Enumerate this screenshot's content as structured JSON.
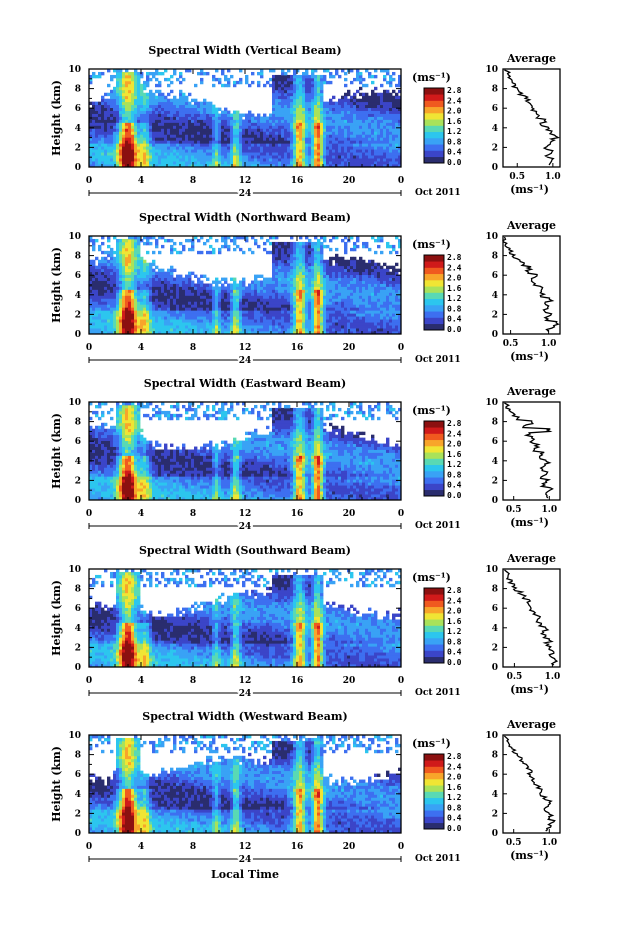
{
  "figure": {
    "date_label": "Oct 2011",
    "day_label": "24",
    "xlabel": "Local Time",
    "unit_label": "(ms⁻¹)",
    "colorbar_ticks": [
      "0.0",
      "0.4",
      "0.8",
      "1.2",
      "1.6",
      "2.0",
      "2.4",
      "2.8"
    ],
    "colorbar_colors": [
      "#2a2d6e",
      "#3b45c8",
      "#3d6ff0",
      "#39a2f5",
      "#2cc6ee",
      "#59d9b4",
      "#a9e25a",
      "#f0e534",
      "#f8a52a",
      "#f05a1f",
      "#d01a1a",
      "#8c1010"
    ]
  },
  "chart_data": [
    {
      "type": "heatmap",
      "title": "Spectral Width (Vertical Beam)",
      "ylabel": "Height (km)",
      "x_ticks": [
        "0",
        "4",
        "8",
        "12",
        "16",
        "20",
        "0"
      ],
      "y_ticks": [
        "0",
        "2",
        "4",
        "6",
        "8",
        "10"
      ],
      "xlim": [
        0,
        24
      ],
      "ylim": [
        0,
        10
      ],
      "average": {
        "title": "Average",
        "xlabel": "(ms⁻¹)",
        "x_ticks": [
          "0.5",
          "1.0"
        ],
        "xlim": [
          0.3,
          1.1
        ],
        "height": [
          0.2,
          0.6,
          1.0,
          1.4,
          1.8,
          2.2,
          2.6,
          3.0,
          3.4,
          3.8,
          4.2,
          4.6,
          5.0,
          5.4,
          5.8,
          6.2,
          6.6,
          7.0,
          7.4,
          7.8,
          8.2,
          8.6,
          9.0,
          9.4
        ],
        "value": [
          0.95,
          1.0,
          0.92,
          0.98,
          0.9,
          0.95,
          1.0,
          1.05,
          0.98,
          0.92,
          0.85,
          0.88,
          0.8,
          0.75,
          0.72,
          0.7,
          0.65,
          0.62,
          0.55,
          0.5,
          0.45,
          0.42,
          0.4,
          0.38
        ]
      }
    },
    {
      "type": "heatmap",
      "title": "Spectral Width (Northward Beam)",
      "ylabel": "Height (km)",
      "x_ticks": [
        "0",
        "4",
        "8",
        "12",
        "16",
        "20",
        "0"
      ],
      "y_ticks": [
        "0",
        "2",
        "4",
        "6",
        "8",
        "10"
      ],
      "xlim": [
        0,
        24
      ],
      "ylim": [
        0,
        10
      ],
      "average": {
        "title": "Average",
        "xlabel": "(ms⁻¹)",
        "x_ticks": [
          "0.5",
          "1.0"
        ],
        "xlim": [
          0.4,
          1.15
        ],
        "height": [
          0.2,
          0.6,
          1.0,
          1.4,
          1.8,
          2.2,
          2.6,
          3.0,
          3.4,
          3.8,
          4.2,
          4.6,
          5.0,
          5.4,
          5.8,
          6.2,
          6.6,
          7.0,
          7.4,
          7.8,
          8.2,
          8.6,
          9.0,
          9.4
        ],
        "value": [
          1.0,
          1.05,
          1.1,
          0.98,
          1.02,
          0.95,
          1.0,
          0.97,
          1.03,
          0.92,
          0.88,
          0.9,
          0.8,
          0.78,
          0.82,
          0.72,
          0.75,
          0.68,
          0.62,
          0.55,
          0.5,
          0.48,
          0.45,
          0.42
        ]
      }
    },
    {
      "type": "heatmap",
      "title": "Spectral Width (Eastward Beam)",
      "ylabel": "Height (km)",
      "x_ticks": [
        "0",
        "4",
        "8",
        "12",
        "16",
        "20",
        "0"
      ],
      "y_ticks": [
        "0",
        "2",
        "4",
        "6",
        "8",
        "10"
      ],
      "xlim": [
        0,
        24
      ],
      "ylim": [
        0,
        10
      ],
      "average": {
        "title": "Average",
        "xlabel": "(ms⁻¹)",
        "x_ticks": [
          "0.5",
          "1.0"
        ],
        "xlim": [
          0.35,
          1.15
        ],
        "height": [
          0.2,
          0.6,
          1.0,
          1.4,
          1.8,
          2.2,
          2.6,
          3.0,
          3.4,
          3.8,
          4.2,
          4.6,
          5.0,
          5.4,
          5.8,
          6.2,
          6.6,
          7.0,
          7.4,
          7.8,
          8.2,
          8.6,
          9.0,
          9.4
        ],
        "value": [
          0.98,
          0.95,
          1.02,
          0.92,
          0.97,
          0.9,
          0.95,
          0.88,
          0.92,
          0.98,
          0.85,
          0.9,
          0.8,
          0.82,
          0.75,
          0.78,
          0.7,
          1.0,
          0.65,
          0.75,
          0.55,
          0.5,
          0.45,
          0.42
        ]
      }
    },
    {
      "type": "heatmap",
      "title": "Spectral Width (Southward Beam)",
      "ylabel": "Height (km)",
      "x_ticks": [
        "0",
        "4",
        "8",
        "12",
        "16",
        "20",
        "0"
      ],
      "y_ticks": [
        "0",
        "2",
        "4",
        "6",
        "8",
        "10"
      ],
      "xlim": [
        0,
        24
      ],
      "ylim": [
        0,
        10
      ],
      "average": {
        "title": "Average",
        "xlabel": "(ms⁻¹)",
        "x_ticks": [
          "0.5",
          "1.0"
        ],
        "xlim": [
          0.35,
          1.1
        ],
        "height": [
          0.2,
          0.6,
          1.0,
          1.4,
          1.8,
          2.2,
          2.6,
          3.0,
          3.4,
          3.8,
          4.2,
          4.6,
          5.0,
          5.4,
          5.8,
          6.2,
          6.6,
          7.0,
          7.4,
          7.8,
          8.2,
          8.6,
          9.0,
          9.4
        ],
        "value": [
          1.02,
          1.05,
          0.98,
          1.0,
          0.95,
          0.92,
          0.97,
          0.9,
          0.88,
          0.93,
          0.85,
          0.8,
          0.82,
          0.75,
          0.72,
          0.7,
          0.68,
          0.62,
          0.58,
          0.52,
          0.48,
          0.45,
          0.42,
          0.4
        ]
      }
    },
    {
      "type": "heatmap",
      "title": "Spectral Width (Westward Beam)",
      "ylabel": "Height (km)",
      "x_ticks": [
        "0",
        "4",
        "8",
        "12",
        "16",
        "20",
        "0"
      ],
      "y_ticks": [
        "0",
        "2",
        "4",
        "6",
        "8",
        "10"
      ],
      "xlim": [
        0,
        24
      ],
      "ylim": [
        0,
        10
      ],
      "average": {
        "title": "Average",
        "xlabel": "(ms⁻¹)",
        "x_ticks": [
          "0.5",
          "1.0"
        ],
        "xlim": [
          0.35,
          1.15
        ],
        "height": [
          0.2,
          0.6,
          1.0,
          1.4,
          1.8,
          2.2,
          2.6,
          3.0,
          3.4,
          3.8,
          4.2,
          4.6,
          5.0,
          5.4,
          5.8,
          6.2,
          6.6,
          7.0,
          7.4,
          7.8,
          8.2,
          8.6,
          9.0,
          9.4
        ],
        "value": [
          0.95,
          1.0,
          1.05,
          0.98,
          1.02,
          0.92,
          0.97,
          1.0,
          0.93,
          0.88,
          0.9,
          0.85,
          0.8,
          0.78,
          0.72,
          0.75,
          0.68,
          0.65,
          0.6,
          0.55,
          0.5,
          0.45,
          0.43,
          0.4
        ]
      }
    }
  ]
}
